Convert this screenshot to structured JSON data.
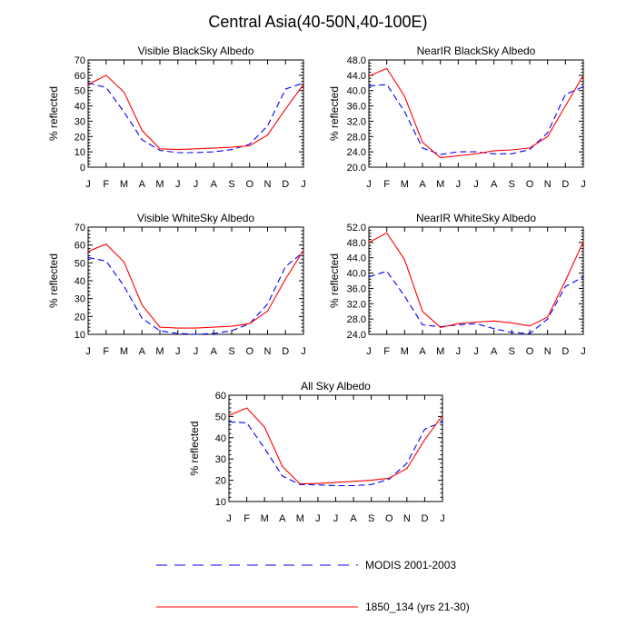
{
  "figure": {
    "title": "Central Asia(40-50N,40-100E)"
  },
  "legend": {
    "position": "bottom",
    "entries": [
      {
        "label": "MODIS 2001-2003",
        "color": "#0000ff",
        "dash": "dashed"
      },
      {
        "label": "1850_134 (yrs 21-30)",
        "color": "#ff0000",
        "dash": "solid"
      }
    ]
  },
  "chart_data": [
    {
      "type": "line",
      "title": "Visible BlackSky Albedo",
      "ylabel": "% reflected",
      "categories": [
        "J",
        "F",
        "M",
        "A",
        "M",
        "J",
        "J",
        "A",
        "S",
        "O",
        "N",
        "D",
        "J"
      ],
      "ylim": [
        0,
        70
      ],
      "yticks": [
        0,
        10,
        20,
        30,
        40,
        50,
        60,
        70
      ],
      "ytick_labels": [
        "0",
        "10",
        "20",
        "30",
        "40",
        "50",
        "60",
        "70"
      ],
      "series": [
        {
          "name": "MODIS 2001-2003",
          "color": "#0000ff",
          "dash": "dashed",
          "values": [
            55,
            52,
            36,
            18,
            11,
            9.5,
            9.5,
            10,
            11.5,
            15,
            27,
            51,
            55
          ]
        },
        {
          "name": "1850_134 (yrs 21-30)",
          "color": "#ff0000",
          "dash": "solid",
          "values": [
            54,
            60,
            49,
            24,
            12,
            11.5,
            12,
            12.5,
            13,
            14,
            21,
            38,
            54
          ]
        }
      ]
    },
    {
      "type": "line",
      "title": "NearIR BlackSky Albedo",
      "ylabel": "% reflected",
      "categories": [
        "J",
        "F",
        "M",
        "A",
        "M",
        "J",
        "J",
        "A",
        "S",
        "O",
        "N",
        "D",
        "J"
      ],
      "ylim": [
        20,
        48
      ],
      "yticks": [
        20,
        24,
        28,
        32,
        36,
        40,
        44,
        48
      ],
      "ytick_labels": [
        "20.0",
        "24.0",
        "28.0",
        "32.0",
        "36.0",
        "40.0",
        "44.0",
        "48.0"
      ],
      "series": [
        {
          "name": "MODIS 2001-2003",
          "color": "#0000ff",
          "dash": "dashed",
          "values": [
            41.2,
            41.6,
            34.5,
            25,
            23.3,
            24,
            24,
            23.5,
            23.5,
            24.6,
            29,
            39,
            41
          ]
        },
        {
          "name": "1850_134 (yrs 21-30)",
          "color": "#ff0000",
          "dash": "solid",
          "values": [
            43.8,
            45.8,
            38.5,
            26.5,
            22.5,
            23,
            23.5,
            24.3,
            24.5,
            25,
            28,
            36,
            44
          ]
        }
      ]
    },
    {
      "type": "line",
      "title": "Visible WhiteSky Albedo",
      "ylabel": "% reflected",
      "categories": [
        "J",
        "F",
        "M",
        "A",
        "M",
        "J",
        "J",
        "A",
        "S",
        "O",
        "N",
        "D",
        "J"
      ],
      "ylim": [
        10,
        70
      ],
      "yticks": [
        10,
        20,
        30,
        40,
        50,
        60,
        70
      ],
      "ytick_labels": [
        "10",
        "20",
        "30",
        "40",
        "50",
        "60",
        "70"
      ],
      "series": [
        {
          "name": "MODIS 2001-2003",
          "color": "#0000ff",
          "dash": "dashed",
          "values": [
            53,
            51,
            37,
            19,
            12,
            10.5,
            10,
            10.5,
            12,
            16,
            27,
            48,
            56
          ]
        },
        {
          "name": "1850_134 (yrs 21-30)",
          "color": "#ff0000",
          "dash": "solid",
          "values": [
            56.5,
            60.5,
            50.5,
            26.5,
            14,
            13.5,
            13.5,
            14,
            14.5,
            16,
            23,
            41,
            57
          ]
        }
      ]
    },
    {
      "type": "line",
      "title": "NearIR WhiteSky Albedo",
      "ylabel": "% reflected",
      "categories": [
        "J",
        "F",
        "M",
        "A",
        "M",
        "J",
        "J",
        "A",
        "S",
        "O",
        "N",
        "D",
        "J"
      ],
      "ylim": [
        24,
        52
      ],
      "yticks": [
        24,
        28,
        32,
        36,
        40,
        44,
        48,
        52
      ],
      "ytick_labels": [
        "24.0",
        "28.0",
        "32.0",
        "36.0",
        "40.0",
        "44.0",
        "48.0",
        "52.0"
      ],
      "series": [
        {
          "name": "MODIS 2001-2003",
          "color": "#0000ff",
          "dash": "dashed",
          "values": [
            39,
            40.5,
            34,
            26.5,
            26,
            26.5,
            26.8,
            25.5,
            24.5,
            24.2,
            28,
            36.5,
            39
          ]
        },
        {
          "name": "1850_134 (yrs 21-30)",
          "color": "#ff0000",
          "dash": "solid",
          "values": [
            48,
            50.5,
            43.5,
            30,
            25.8,
            26.8,
            27.2,
            27.5,
            27,
            26.2,
            28.5,
            38,
            48.2
          ]
        }
      ]
    },
    {
      "type": "line",
      "title": "All Sky Albedo",
      "ylabel": "% reflected",
      "categories": [
        "J",
        "F",
        "M",
        "A",
        "M",
        "J",
        "J",
        "A",
        "S",
        "O",
        "N",
        "D",
        "J"
      ],
      "ylim": [
        10,
        60
      ],
      "yticks": [
        10,
        20,
        30,
        40,
        50,
        60
      ],
      "ytick_labels": [
        "10",
        "20",
        "30",
        "40",
        "50",
        "60"
      ],
      "series": [
        {
          "name": "MODIS 2001-2003",
          "color": "#0000ff",
          "dash": "dashed",
          "values": [
            47.5,
            47,
            35,
            22,
            18,
            17.8,
            17.5,
            17.5,
            18,
            20.5,
            28,
            44,
            47.5
          ]
        },
        {
          "name": "1850_134 (yrs 21-30)",
          "color": "#ff0000",
          "dash": "solid",
          "values": [
            50.5,
            54,
            45,
            26.5,
            18.3,
            18.5,
            19,
            19.5,
            20,
            21,
            25.5,
            39,
            50.5
          ]
        }
      ]
    }
  ]
}
